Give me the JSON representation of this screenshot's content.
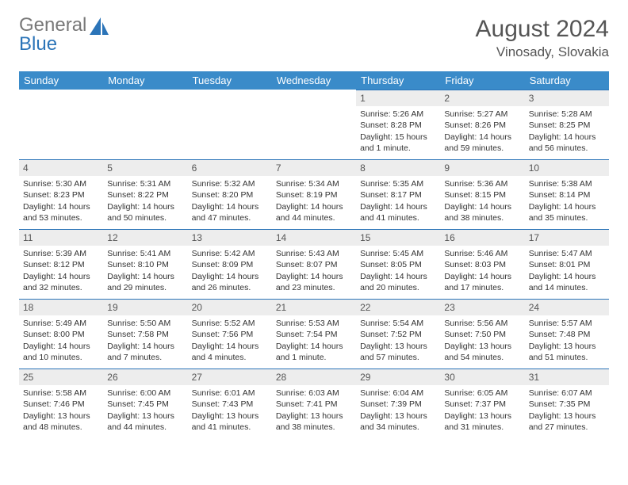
{
  "logo": {
    "gray": "General",
    "blue": "Blue"
  },
  "title": "August 2024",
  "location": "Vinosady, Slovakia",
  "colors": {
    "header_bg": "#3a8bc9",
    "accent": "#2b74b8",
    "daynum_bg": "#ededed",
    "text": "#333333",
    "title_text": "#555555"
  },
  "days_of_week": [
    "Sunday",
    "Monday",
    "Tuesday",
    "Wednesday",
    "Thursday",
    "Friday",
    "Saturday"
  ],
  "weeks": [
    [
      null,
      null,
      null,
      null,
      {
        "n": "1",
        "sr": "5:26 AM",
        "ss": "8:28 PM",
        "dl": "15 hours and 1 minute."
      },
      {
        "n": "2",
        "sr": "5:27 AM",
        "ss": "8:26 PM",
        "dl": "14 hours and 59 minutes."
      },
      {
        "n": "3",
        "sr": "5:28 AM",
        "ss": "8:25 PM",
        "dl": "14 hours and 56 minutes."
      }
    ],
    [
      {
        "n": "4",
        "sr": "5:30 AM",
        "ss": "8:23 PM",
        "dl": "14 hours and 53 minutes."
      },
      {
        "n": "5",
        "sr": "5:31 AM",
        "ss": "8:22 PM",
        "dl": "14 hours and 50 minutes."
      },
      {
        "n": "6",
        "sr": "5:32 AM",
        "ss": "8:20 PM",
        "dl": "14 hours and 47 minutes."
      },
      {
        "n": "7",
        "sr": "5:34 AM",
        "ss": "8:19 PM",
        "dl": "14 hours and 44 minutes."
      },
      {
        "n": "8",
        "sr": "5:35 AM",
        "ss": "8:17 PM",
        "dl": "14 hours and 41 minutes."
      },
      {
        "n": "9",
        "sr": "5:36 AM",
        "ss": "8:15 PM",
        "dl": "14 hours and 38 minutes."
      },
      {
        "n": "10",
        "sr": "5:38 AM",
        "ss": "8:14 PM",
        "dl": "14 hours and 35 minutes."
      }
    ],
    [
      {
        "n": "11",
        "sr": "5:39 AM",
        "ss": "8:12 PM",
        "dl": "14 hours and 32 minutes."
      },
      {
        "n": "12",
        "sr": "5:41 AM",
        "ss": "8:10 PM",
        "dl": "14 hours and 29 minutes."
      },
      {
        "n": "13",
        "sr": "5:42 AM",
        "ss": "8:09 PM",
        "dl": "14 hours and 26 minutes."
      },
      {
        "n": "14",
        "sr": "5:43 AM",
        "ss": "8:07 PM",
        "dl": "14 hours and 23 minutes."
      },
      {
        "n": "15",
        "sr": "5:45 AM",
        "ss": "8:05 PM",
        "dl": "14 hours and 20 minutes."
      },
      {
        "n": "16",
        "sr": "5:46 AM",
        "ss": "8:03 PM",
        "dl": "14 hours and 17 minutes."
      },
      {
        "n": "17",
        "sr": "5:47 AM",
        "ss": "8:01 PM",
        "dl": "14 hours and 14 minutes."
      }
    ],
    [
      {
        "n": "18",
        "sr": "5:49 AM",
        "ss": "8:00 PM",
        "dl": "14 hours and 10 minutes."
      },
      {
        "n": "19",
        "sr": "5:50 AM",
        "ss": "7:58 PM",
        "dl": "14 hours and 7 minutes."
      },
      {
        "n": "20",
        "sr": "5:52 AM",
        "ss": "7:56 PM",
        "dl": "14 hours and 4 minutes."
      },
      {
        "n": "21",
        "sr": "5:53 AM",
        "ss": "7:54 PM",
        "dl": "14 hours and 1 minute."
      },
      {
        "n": "22",
        "sr": "5:54 AM",
        "ss": "7:52 PM",
        "dl": "13 hours and 57 minutes."
      },
      {
        "n": "23",
        "sr": "5:56 AM",
        "ss": "7:50 PM",
        "dl": "13 hours and 54 minutes."
      },
      {
        "n": "24",
        "sr": "5:57 AM",
        "ss": "7:48 PM",
        "dl": "13 hours and 51 minutes."
      }
    ],
    [
      {
        "n": "25",
        "sr": "5:58 AM",
        "ss": "7:46 PM",
        "dl": "13 hours and 48 minutes."
      },
      {
        "n": "26",
        "sr": "6:00 AM",
        "ss": "7:45 PM",
        "dl": "13 hours and 44 minutes."
      },
      {
        "n": "27",
        "sr": "6:01 AM",
        "ss": "7:43 PM",
        "dl": "13 hours and 41 minutes."
      },
      {
        "n": "28",
        "sr": "6:03 AM",
        "ss": "7:41 PM",
        "dl": "13 hours and 38 minutes."
      },
      {
        "n": "29",
        "sr": "6:04 AM",
        "ss": "7:39 PM",
        "dl": "13 hours and 34 minutes."
      },
      {
        "n": "30",
        "sr": "6:05 AM",
        "ss": "7:37 PM",
        "dl": "13 hours and 31 minutes."
      },
      {
        "n": "31",
        "sr": "6:07 AM",
        "ss": "7:35 PM",
        "dl": "13 hours and 27 minutes."
      }
    ]
  ],
  "labels": {
    "sunrise": "Sunrise:",
    "sunset": "Sunset:",
    "daylight": "Daylight:"
  }
}
